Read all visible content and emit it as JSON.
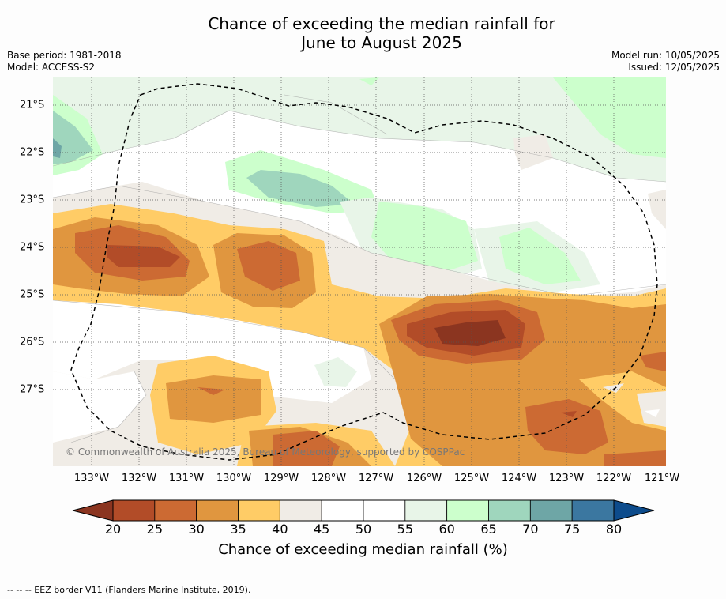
{
  "title_line1": "Chance of exceeding the median rainfall for",
  "title_line2": "June to August 2025",
  "meta_left": [
    "Base period: 1981-2018",
    "Model: ACCESS-S2"
  ],
  "meta_right": [
    "Model run: 10/05/2025",
    "Issued: 12/05/2025"
  ],
  "credit": "© Commonwealth of Australia 2025, Bureau of Meteorology, supported by COSPPac",
  "lon_labels": [
    "133°W",
    "132°W",
    "131°W",
    "130°W",
    "129°W",
    "128°W",
    "127°W",
    "126°W",
    "125°W",
    "124°W",
    "123°W",
    "122°W",
    "121°W"
  ],
  "lat_labels": [
    "21°S",
    "22°S",
    "23°S",
    "24°S",
    "25°S",
    "26°S",
    "27°S"
  ],
  "colorbar": {
    "ticks": [
      "20",
      "25",
      "30",
      "35",
      "40",
      "45",
      "50",
      "55",
      "60",
      "65",
      "70",
      "75",
      "80"
    ],
    "colors": [
      "#b24c28",
      "#cc6a33",
      "#e0963f",
      "#ffcc66",
      "#f0ece6",
      "#ffffff",
      "#ffffff",
      "#e8f5e8",
      "#ccffcc",
      "#9fd6bd",
      "#6ea6a6",
      "#3b77a0"
    ],
    "under_color": "#8b3520",
    "over_color": "#0d4c8c",
    "label": "Chance of exceeding median rainfall (%)"
  },
  "footer": "--  --  -- EEZ border V11 (Flanders Marine Institute, 2019)."
}
